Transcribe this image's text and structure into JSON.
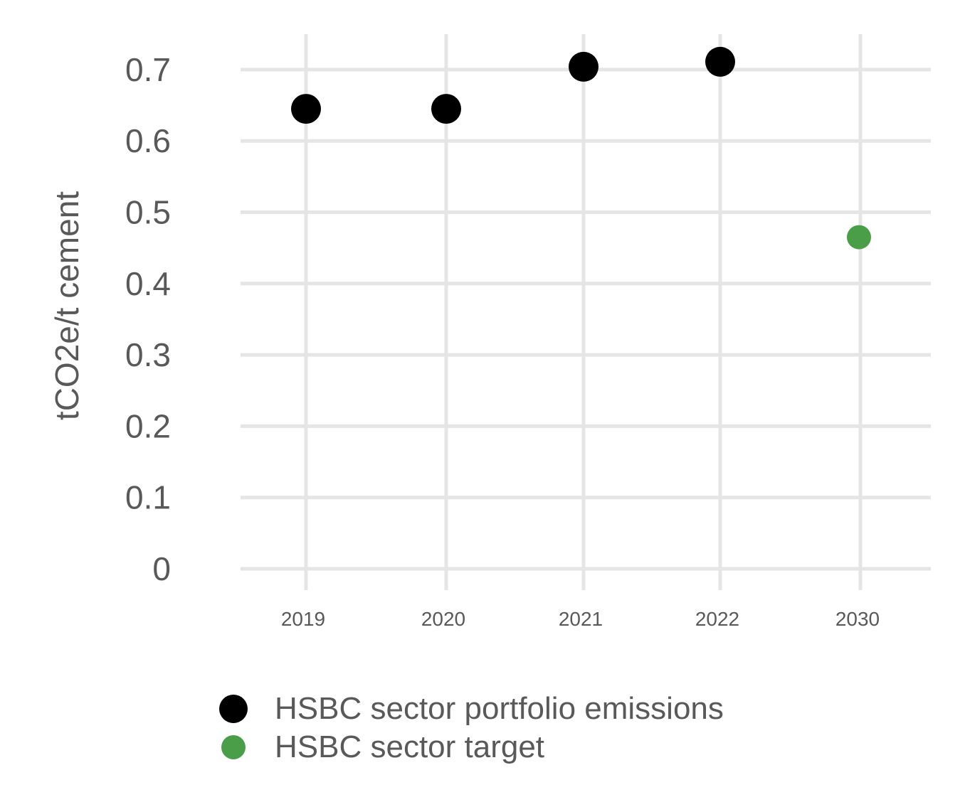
{
  "chart_data": {
    "type": "scatter",
    "categories": [
      "2019",
      "2020",
      "2021",
      "2022",
      "2030"
    ],
    "ylabel": "tCO2e/t cement",
    "xlabel": "",
    "ylim": [
      0,
      0.75
    ],
    "yticks": [
      0,
      0.1,
      0.2,
      0.3,
      0.4,
      0.5,
      0.6,
      0.7
    ],
    "ytick_labels": [
      "0",
      "0.1",
      "0.2",
      "0.3",
      "0.4",
      "0.5",
      "0.6",
      "0.7"
    ],
    "grid": true,
    "legend_position": "bottom",
    "series": [
      {
        "name": "HSBC sector portfolio emissions",
        "color": "#000000",
        "points": [
          {
            "x": "2019",
            "y": 0.645
          },
          {
            "x": "2020",
            "y": 0.645
          },
          {
            "x": "2021",
            "y": 0.704
          },
          {
            "x": "2022",
            "y": 0.711
          }
        ]
      },
      {
        "name": "HSBC sector target",
        "color": "#4a9e47",
        "points": [
          {
            "x": "2030",
            "y": 0.465
          }
        ]
      }
    ]
  }
}
